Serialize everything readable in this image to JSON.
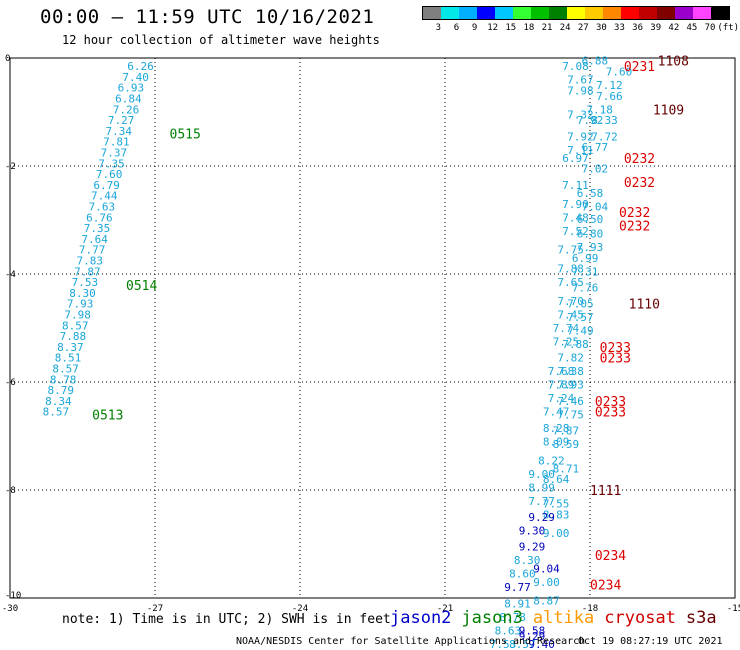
{
  "header": {
    "title": "00:00 – 11:59 UTC 10/16/2021",
    "subtitle": "12 hour collection of altimeter wave heights"
  },
  "colorbar": {
    "labels": [
      "3",
      "6",
      "9",
      "12",
      "15",
      "18",
      "21",
      "24",
      "27",
      "30",
      "33",
      "36",
      "39",
      "42",
      "45",
      "70",
      "(ft)"
    ],
    "colors": [
      "#7f7f7f",
      "#00e8e8",
      "#00b0ff",
      "#0000ff",
      "#00c8ff",
      "#33ff33",
      "#00c000",
      "#008000",
      "#ffff00",
      "#ffcc00",
      "#ff8800",
      "#ff0000",
      "#c00000",
      "#800000",
      "#9900cc",
      "#ff44ff",
      "#000000"
    ]
  },
  "note": "note: 1) Time is in UTC; 2) SWH is in feet",
  "legend": [
    {
      "label": "jason2",
      "color": "#0000cc"
    },
    {
      "label": "jason3",
      "color": "#008000"
    },
    {
      "label": "altika",
      "color": "#ff9900"
    },
    {
      "label": "cryosat",
      "color": "#cc0000"
    },
    {
      "label": "s3a",
      "color": "#660000"
    }
  ],
  "footer": {
    "credit": "NOAA/NESDIS Center for Satellite Applications and Research",
    "timestamp": "Oct 19 08:27:19 UTC 2021"
  },
  "chart_data": {
    "type": "scatter",
    "xlim": [
      -30,
      -15
    ],
    "ylim": [
      -10,
      0
    ],
    "x_ticks": [
      -30,
      -27,
      -24,
      -21,
      -18,
      -15
    ],
    "y_ticks": [
      0,
      -2,
      -4,
      -6,
      -8,
      -10
    ],
    "grid": true,
    "left_track": [
      {
        "x": -27.3,
        "y": -0.15,
        "v": "6.26"
      },
      {
        "x": -27.4,
        "y": -0.35,
        "v": "7.40"
      },
      {
        "x": -27.5,
        "y": -0.55,
        "v": "6.93"
      },
      {
        "x": -27.55,
        "y": -0.75,
        "v": "6.84"
      },
      {
        "x": -27.6,
        "y": -0.95,
        "v": "7.26"
      },
      {
        "x": -27.7,
        "y": -1.15,
        "v": "7.27"
      },
      {
        "x": -27.75,
        "y": -1.35,
        "v": "7.34"
      },
      {
        "x": -27.8,
        "y": -1.55,
        "v": "7.81"
      },
      {
        "x": -27.85,
        "y": -1.75,
        "v": "7.37"
      },
      {
        "x": -27.9,
        "y": -1.95,
        "v": "7.35"
      },
      {
        "x": -27.95,
        "y": -2.15,
        "v": "7.60"
      },
      {
        "x": -28.0,
        "y": -2.35,
        "v": "6.79"
      },
      {
        "x": -28.05,
        "y": -2.55,
        "v": "7.44"
      },
      {
        "x": -28.1,
        "y": -2.75,
        "v": "7.63"
      },
      {
        "x": -28.15,
        "y": -2.95,
        "v": "6.76"
      },
      {
        "x": -28.2,
        "y": -3.15,
        "v": "7.35"
      },
      {
        "x": -28.25,
        "y": -3.35,
        "v": "7.64"
      },
      {
        "x": -28.3,
        "y": -3.55,
        "v": "7.77"
      },
      {
        "x": -28.35,
        "y": -3.75,
        "v": "7.83"
      },
      {
        "x": -28.4,
        "y": -3.95,
        "v": "7.87"
      },
      {
        "x": -28.45,
        "y": -4.15,
        "v": "7.53"
      },
      {
        "x": -28.5,
        "y": -4.35,
        "v": "8.30"
      },
      {
        "x": -28.55,
        "y": -4.55,
        "v": "7.93"
      },
      {
        "x": -28.6,
        "y": -4.75,
        "v": "7.98"
      },
      {
        "x": -28.65,
        "y": -4.95,
        "v": "8.57"
      },
      {
        "x": -28.7,
        "y": -5.15,
        "v": "7.88"
      },
      {
        "x": -28.75,
        "y": -5.35,
        "v": "8.37"
      },
      {
        "x": -28.8,
        "y": -5.55,
        "v": "8.51"
      },
      {
        "x": -28.85,
        "y": -5.75,
        "v": "8.57"
      },
      {
        "x": -28.9,
        "y": -5.95,
        "v": "8.78"
      },
      {
        "x": -28.95,
        "y": -6.15,
        "v": "8.79"
      },
      {
        "x": -29.0,
        "y": -6.35,
        "v": "8.34"
      },
      {
        "x": -29.05,
        "y": -6.55,
        "v": "8.57"
      }
    ],
    "left_times": [
      {
        "x": -26.7,
        "y": -1.4,
        "v": "0515"
      },
      {
        "x": -27.6,
        "y": -4.2,
        "v": "0514"
      },
      {
        "x": -28.3,
        "y": -6.6,
        "v": "0513"
      }
    ],
    "right_track": [
      {
        "x": -17.9,
        "y": -0.05,
        "v": "6.88"
      },
      {
        "x": -18.3,
        "y": -0.15,
        "v": "7.08"
      },
      {
        "x": -17.4,
        "y": -0.25,
        "v": "7.60"
      },
      {
        "x": -18.2,
        "y": -0.4,
        "v": "7.67"
      },
      {
        "x": -17.6,
        "y": -0.5,
        "v": "7.12"
      },
      {
        "x": -18.2,
        "y": -0.6,
        "v": "7.98"
      },
      {
        "x": -17.6,
        "y": -0.7,
        "v": "7.66"
      },
      {
        "x": -17.8,
        "y": -0.95,
        "v": "7.18"
      },
      {
        "x": -18.2,
        "y": -1.05,
        "v": "7.32"
      },
      {
        "x": -17.7,
        "y": -1.15,
        "v": "8.33"
      },
      {
        "x": -18.0,
        "y": -1.15,
        "v": "7.92"
      },
      {
        "x": -18.2,
        "y": -1.45,
        "v": "7.92"
      },
      {
        "x": -17.7,
        "y": -1.45,
        "v": "7.72"
      },
      {
        "x": -18.2,
        "y": -1.7,
        "v": "7.11"
      },
      {
        "x": -17.9,
        "y": -1.65,
        "v": "6.77"
      },
      {
        "x": -18.3,
        "y": -1.85,
        "v": "6.97"
      },
      {
        "x": -17.9,
        "y": -2.05,
        "v": "7.02"
      },
      {
        "x": -18.3,
        "y": -2.35,
        "v": "7.11"
      },
      {
        "x": -18.0,
        "y": -2.5,
        "v": "6.58"
      },
      {
        "x": -18.3,
        "y": -2.7,
        "v": "7.90"
      },
      {
        "x": -17.9,
        "y": -2.75,
        "v": "7.04"
      },
      {
        "x": -18.3,
        "y": -2.95,
        "v": "7.48"
      },
      {
        "x": -18.0,
        "y": -2.98,
        "v": "6.50"
      },
      {
        "x": -18.3,
        "y": -3.2,
        "v": "7.52"
      },
      {
        "x": -18.0,
        "y": -3.25,
        "v": "6.80"
      },
      {
        "x": -18.0,
        "y": -3.5,
        "v": "7.93"
      },
      {
        "x": -18.4,
        "y": -3.55,
        "v": "7.75"
      },
      {
        "x": -18.1,
        "y": -3.7,
        "v": "6.99"
      },
      {
        "x": -18.4,
        "y": -3.9,
        "v": "7.88"
      },
      {
        "x": -18.1,
        "y": -3.95,
        "v": "7.31"
      },
      {
        "x": -18.4,
        "y": -4.15,
        "v": "7.65"
      },
      {
        "x": -18.1,
        "y": -4.25,
        "v": "7.76"
      },
      {
        "x": -18.4,
        "y": -4.5,
        "v": "7.70"
      },
      {
        "x": -18.2,
        "y": -4.55,
        "v": "7.05"
      },
      {
        "x": -18.4,
        "y": -4.75,
        "v": "7.45"
      },
      {
        "x": -18.2,
        "y": -4.8,
        "v": "7.57"
      },
      {
        "x": -18.5,
        "y": -5.0,
        "v": "7.74"
      },
      {
        "x": -18.2,
        "y": -5.05,
        "v": "7.49"
      },
      {
        "x": -18.5,
        "y": -5.25,
        "v": "7.25"
      },
      {
        "x": -18.3,
        "y": -5.3,
        "v": "7.88"
      },
      {
        "x": -18.4,
        "y": -5.55,
        "v": "7.82"
      },
      {
        "x": -18.6,
        "y": -5.8,
        "v": "7.68"
      },
      {
        "x": -18.4,
        "y": -5.8,
        "v": "7.38"
      },
      {
        "x": -18.6,
        "y": -6.05,
        "v": "7.89"
      },
      {
        "x": -18.4,
        "y": -6.05,
        "v": "7.93"
      },
      {
        "x": -18.6,
        "y": -6.3,
        "v": "7.24"
      },
      {
        "x": -18.4,
        "y": -6.35,
        "v": "7.46"
      },
      {
        "x": -18.7,
        "y": -6.55,
        "v": "7.47"
      },
      {
        "x": -18.4,
        "y": -6.6,
        "v": "7.75"
      },
      {
        "x": -18.7,
        "y": -6.85,
        "v": "8.28"
      },
      {
        "x": -18.5,
        "y": -6.9,
        "v": "7.87"
      },
      {
        "x": -18.7,
        "y": -7.1,
        "v": "8.09"
      },
      {
        "x": -18.5,
        "y": -7.15,
        "v": "8.59"
      },
      {
        "x": -18.8,
        "y": -7.45,
        "v": "8.22"
      },
      {
        "x": -18.5,
        "y": -7.6,
        "v": "8.71"
      },
      {
        "x": -19.0,
        "y": -7.7,
        "v": "9.00"
      },
      {
        "x": -18.7,
        "y": -7.8,
        "v": "8.64"
      },
      {
        "x": -19.0,
        "y": -7.95,
        "v": "8.99"
      },
      {
        "x": -19.0,
        "y": -8.2,
        "v": "7.77"
      },
      {
        "x": -18.7,
        "y": -8.25,
        "v": "7.55"
      },
      {
        "x": -18.7,
        "y": -8.45,
        "v": "8.83"
      },
      {
        "x": -19.0,
        "y": -8.5,
        "v": "9.29"
      },
      {
        "x": -19.2,
        "y": -8.75,
        "v": "9.30"
      },
      {
        "x": -18.7,
        "y": -8.8,
        "v": "9.00"
      },
      {
        "x": -19.2,
        "y": -9.05,
        "v": "9.29"
      },
      {
        "x": -19.3,
        "y": -9.3,
        "v": "8.30"
      },
      {
        "x": -18.9,
        "y": -9.45,
        "v": "9.04"
      },
      {
        "x": -19.4,
        "y": -9.55,
        "v": "8.60"
      },
      {
        "x": -18.9,
        "y": -9.7,
        "v": "9.00"
      },
      {
        "x": -19.5,
        "y": -9.8,
        "v": "9.77"
      },
      {
        "x": -19.5,
        "y": -10.1,
        "v": "8.91"
      },
      {
        "x": -18.9,
        "y": -10.05,
        "v": "8.87"
      },
      {
        "x": -19.6,
        "y": -10.35,
        "v": "8.78"
      },
      {
        "x": -19.7,
        "y": -10.6,
        "v": "8.63"
      },
      {
        "x": -19.2,
        "y": -10.6,
        "v": "9.58"
      },
      {
        "x": -19.2,
        "y": -10.7,
        "v": "9.29"
      },
      {
        "x": -19.8,
        "y": -10.85,
        "v": "7.53"
      },
      {
        "x": -19.4,
        "y": -10.85,
        "v": "8.57"
      },
      {
        "x": -19.0,
        "y": -10.85,
        "v": "9.40"
      }
    ],
    "right_times": [
      {
        "x": -16.6,
        "y": -0.05,
        "v": "1108",
        "sat": "s3a"
      },
      {
        "x": -17.3,
        "y": -0.15,
        "v": "0231",
        "sat": "cryosat"
      },
      {
        "x": -16.7,
        "y": -0.95,
        "v": "1109",
        "sat": "s3a"
      },
      {
        "x": -17.3,
        "y": -1.85,
        "v": "0232",
        "sat": "cryosat"
      },
      {
        "x": -17.3,
        "y": -2.3,
        "v": "0232",
        "sat": "cryosat"
      },
      {
        "x": -17.4,
        "y": -2.85,
        "v": "0232",
        "sat": "cryosat"
      },
      {
        "x": -17.4,
        "y": -3.1,
        "v": "0232",
        "sat": "cryosat"
      },
      {
        "x": -17.2,
        "y": -4.55,
        "v": "1110",
        "sat": "s3a"
      },
      {
        "x": -17.8,
        "y": -5.35,
        "v": "0233",
        "sat": "cryosat"
      },
      {
        "x": -17.8,
        "y": -5.55,
        "v": "0233",
        "sat": "cryosat"
      },
      {
        "x": -17.9,
        "y": -6.35,
        "v": "0233",
        "sat": "cryosat"
      },
      {
        "x": -17.9,
        "y": -6.55,
        "v": "0233",
        "sat": "cryosat"
      },
      {
        "x": -18.0,
        "y": -8.0,
        "v": "1111",
        "sat": "s3a"
      },
      {
        "x": -17.9,
        "y": -9.2,
        "v": "0234",
        "sat": "cryosat"
      },
      {
        "x": -18.0,
        "y": -9.75,
        "v": "0234",
        "sat": "cryosat"
      }
    ]
  }
}
